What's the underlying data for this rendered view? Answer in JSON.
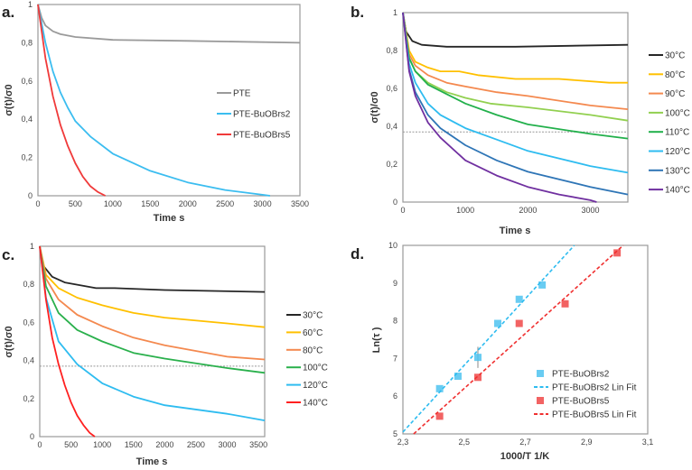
{
  "chart_data": [
    {
      "panel": "a.",
      "type": "line",
      "xlabel": "Time s",
      "ylabel": "σ(t)/σ0",
      "xlim": [
        0,
        3500
      ],
      "ylim": [
        0,
        1
      ],
      "xticks": [
        0,
        500,
        1000,
        1500,
        2000,
        2500,
        3000,
        3500
      ],
      "xtick_labels": [
        "0",
        "500",
        "1000",
        "1500",
        "2000",
        "2500",
        "3000",
        "3500"
      ],
      "yticks": [
        0,
        0.2,
        0.4,
        0.6,
        0.8,
        1
      ],
      "ytick_labels": [
        "0",
        "0,2",
        "0,4",
        "0,6",
        "0,8",
        "1"
      ],
      "legend_position": "center-right inside",
      "series": [
        {
          "name": "PTE",
          "color": "#9a9a9a",
          "points": [
            [
              0,
              1
            ],
            [
              50,
              0.93
            ],
            [
              100,
              0.89
            ],
            [
              200,
              0.86
            ],
            [
              300,
              0.845
            ],
            [
              500,
              0.83
            ],
            [
              1000,
              0.815
            ],
            [
              2000,
              0.81
            ],
            [
              3500,
              0.8
            ]
          ]
        },
        {
          "name": "PTE-BuOBrs2",
          "color": "#3bbdf0",
          "points": [
            [
              0,
              1
            ],
            [
              100,
              0.8
            ],
            [
              200,
              0.65
            ],
            [
              300,
              0.54
            ],
            [
              400,
              0.46
            ],
            [
              500,
              0.39
            ],
            [
              700,
              0.31
            ],
            [
              1000,
              0.22
            ],
            [
              1500,
              0.13
            ],
            [
              2000,
              0.07
            ],
            [
              2500,
              0.03
            ],
            [
              3000,
              0.005
            ],
            [
              3100,
              0
            ]
          ]
        },
        {
          "name": "PTE-BuOBrs5",
          "color": "#f03a3a",
          "points": [
            [
              0,
              1
            ],
            [
              100,
              0.72
            ],
            [
              200,
              0.52
            ],
            [
              300,
              0.37
            ],
            [
              400,
              0.26
            ],
            [
              500,
              0.17
            ],
            [
              600,
              0.1
            ],
            [
              700,
              0.05
            ],
            [
              800,
              0.02
            ],
            [
              900,
              0
            ]
          ]
        }
      ]
    },
    {
      "panel": "b.",
      "type": "line",
      "xlabel": "Time s",
      "ylabel": "σ(t)/σ0",
      "xlim": [
        0,
        3600
      ],
      "ylim": [
        0,
        1
      ],
      "xticks": [
        0,
        1000,
        2000,
        3000
      ],
      "xtick_labels": [
        "0",
        "1000",
        "2000",
        "3000"
      ],
      "yticks": [
        0,
        0.2,
        0.4,
        0.6,
        0.8,
        1
      ],
      "ytick_labels": [
        "0",
        "0,2",
        "0,4",
        "0,6",
        "0,8",
        "1"
      ],
      "reference_line_y": 0.37,
      "legend_position": "right outside",
      "series": [
        {
          "name": "30°C",
          "color": "#262626",
          "points": [
            [
              0,
              1
            ],
            [
              50,
              0.9
            ],
            [
              150,
              0.85
            ],
            [
              300,
              0.83
            ],
            [
              700,
              0.82
            ],
            [
              1800,
              0.82
            ],
            [
              3600,
              0.83
            ]
          ]
        },
        {
          "name": "80°C",
          "color": "#ffc000",
          "points": [
            [
              0,
              1
            ],
            [
              100,
              0.8
            ],
            [
              200,
              0.74
            ],
            [
              400,
              0.71
            ],
            [
              600,
              0.69
            ],
            [
              900,
              0.69
            ],
            [
              1200,
              0.67
            ],
            [
              1800,
              0.65
            ],
            [
              2500,
              0.65
            ],
            [
              3300,
              0.63
            ],
            [
              3600,
              0.63
            ]
          ]
        },
        {
          "name": "90°C",
          "color": "#f4894f",
          "points": [
            [
              0,
              1
            ],
            [
              100,
              0.78
            ],
            [
              200,
              0.72
            ],
            [
              400,
              0.67
            ],
            [
              700,
              0.63
            ],
            [
              1000,
              0.61
            ],
            [
              1500,
              0.58
            ],
            [
              2000,
              0.56
            ],
            [
              3000,
              0.51
            ],
            [
              3600,
              0.49
            ]
          ]
        },
        {
          "name": "100°C",
          "color": "#92d050",
          "points": [
            [
              0,
              1
            ],
            [
              100,
              0.76
            ],
            [
              200,
              0.69
            ],
            [
              400,
              0.63
            ],
            [
              700,
              0.58
            ],
            [
              1000,
              0.55
            ],
            [
              1400,
              0.52
            ],
            [
              2000,
              0.5
            ],
            [
              3000,
              0.46
            ],
            [
              3600,
              0.43
            ]
          ]
        },
        {
          "name": "110°C",
          "color": "#22b04b",
          "points": [
            [
              0,
              1
            ],
            [
              100,
              0.76
            ],
            [
              200,
              0.69
            ],
            [
              400,
              0.62
            ],
            [
              700,
              0.57
            ],
            [
              1000,
              0.52
            ],
            [
              1500,
              0.46
            ],
            [
              2000,
              0.41
            ],
            [
              3000,
              0.36
            ],
            [
              3600,
              0.335
            ]
          ]
        },
        {
          "name": "120°C",
          "color": "#2ebcf0",
          "points": [
            [
              0,
              1
            ],
            [
              100,
              0.73
            ],
            [
              200,
              0.63
            ],
            [
              400,
              0.52
            ],
            [
              600,
              0.46
            ],
            [
              1000,
              0.39
            ],
            [
              1500,
              0.33
            ],
            [
              2000,
              0.27
            ],
            [
              3000,
              0.19
            ],
            [
              3600,
              0.155
            ]
          ]
        },
        {
          "name": "130°C",
          "color": "#2e75b6",
          "points": [
            [
              0,
              1
            ],
            [
              100,
              0.7
            ],
            [
              200,
              0.58
            ],
            [
              400,
              0.46
            ],
            [
              600,
              0.39
            ],
            [
              1000,
              0.3
            ],
            [
              1500,
              0.22
            ],
            [
              2000,
              0.16
            ],
            [
              3000,
              0.08
            ],
            [
              3600,
              0.04
            ]
          ]
        },
        {
          "name": "140°C",
          "color": "#7030a0",
          "points": [
            [
              0,
              1
            ],
            [
              100,
              0.69
            ],
            [
              200,
              0.56
            ],
            [
              400,
              0.42
            ],
            [
              600,
              0.34
            ],
            [
              1000,
              0.22
            ],
            [
              1500,
              0.14
            ],
            [
              2000,
              0.08
            ],
            [
              2500,
              0.04
            ],
            [
              3000,
              0.01
            ],
            [
              3100,
              0
            ]
          ]
        }
      ]
    },
    {
      "panel": "c.",
      "type": "line",
      "xlabel": "Time s",
      "ylabel": "σ(t)/σ0",
      "xlim": [
        0,
        3600
      ],
      "ylim": [
        0,
        1
      ],
      "xticks": [
        0,
        500,
        1000,
        1500,
        2000,
        2500,
        3000,
        3500
      ],
      "xtick_labels": [
        "0",
        "500",
        "1000",
        "1500",
        "2000",
        "2500",
        "3000",
        "3500"
      ],
      "yticks": [
        0,
        0.2,
        0.4,
        0.6,
        0.8,
        1
      ],
      "ytick_labels": [
        "0",
        "0,2",
        "0,4",
        "0,6",
        "0,8",
        "1"
      ],
      "reference_line_y": 0.37,
      "legend_position": "right outside",
      "series": [
        {
          "name": "30°C",
          "color": "#262626",
          "points": [
            [
              0,
              1
            ],
            [
              50,
              0.9
            ],
            [
              200,
              0.84
            ],
            [
              400,
              0.81
            ],
            [
              900,
              0.78
            ],
            [
              1200,
              0.78
            ],
            [
              2000,
              0.77
            ],
            [
              3600,
              0.76
            ]
          ]
        },
        {
          "name": "60°C",
          "color": "#ffc000",
          "points": [
            [
              0,
              1
            ],
            [
              100,
              0.85
            ],
            [
              300,
              0.78
            ],
            [
              600,
              0.73
            ],
            [
              1000,
              0.69
            ],
            [
              1500,
              0.65
            ],
            [
              2000,
              0.625
            ],
            [
              3000,
              0.595
            ],
            [
              3600,
              0.575
            ]
          ]
        },
        {
          "name": "80°C",
          "color": "#f4894f",
          "points": [
            [
              0,
              1
            ],
            [
              100,
              0.83
            ],
            [
              300,
              0.72
            ],
            [
              600,
              0.64
            ],
            [
              1000,
              0.58
            ],
            [
              1500,
              0.52
            ],
            [
              2000,
              0.48
            ],
            [
              3000,
              0.42
            ],
            [
              3600,
              0.405
            ]
          ]
        },
        {
          "name": "100°C",
          "color": "#2ab04c",
          "points": [
            [
              0,
              1
            ],
            [
              100,
              0.79
            ],
            [
              300,
              0.65
            ],
            [
              600,
              0.56
            ],
            [
              1000,
              0.5
            ],
            [
              1500,
              0.44
            ],
            [
              2000,
              0.41
            ],
            [
              3000,
              0.36
            ],
            [
              3600,
              0.335
            ]
          ]
        },
        {
          "name": "120°C",
          "color": "#2ebcf0",
          "points": [
            [
              0,
              1
            ],
            [
              100,
              0.73
            ],
            [
              300,
              0.5
            ],
            [
              600,
              0.38
            ],
            [
              1000,
              0.28
            ],
            [
              1500,
              0.21
            ],
            [
              2000,
              0.165
            ],
            [
              3000,
              0.12
            ],
            [
              3600,
              0.085
            ]
          ]
        },
        {
          "name": "140°C",
          "color": "#ff2020",
          "points": [
            [
              0,
              1
            ],
            [
              100,
              0.72
            ],
            [
              200,
              0.52
            ],
            [
              300,
              0.38
            ],
            [
              400,
              0.27
            ],
            [
              500,
              0.18
            ],
            [
              600,
              0.11
            ],
            [
              700,
              0.06
            ],
            [
              800,
              0.02
            ],
            [
              880,
              0
            ]
          ]
        }
      ]
    },
    {
      "panel": "d.",
      "type": "scatter",
      "xlabel": "1000/T   1/K",
      "ylabel": "Ln(τ )",
      "xlim": [
        2.3,
        3.1
      ],
      "ylim": [
        5,
        10
      ],
      "xticks": [
        2.3,
        2.5,
        2.7,
        2.9,
        3.1
      ],
      "xtick_labels": [
        "2,3",
        "2,5",
        "2,7",
        "2,9",
        "3,1"
      ],
      "yticks": [
        5,
        6,
        7,
        8,
        9,
        10
      ],
      "ytick_labels": [
        "5",
        "6",
        "7",
        "8",
        "9",
        "10"
      ],
      "legend_position": "bottom-right inside",
      "series": [
        {
          "name": "PTE-BuOBrs2",
          "kind": "markers",
          "color": "#4fc3f0",
          "points": [
            [
              2.42,
              6.2
            ],
            [
              2.48,
              6.53
            ],
            [
              2.545,
              7.03
            ],
            [
              2.61,
              7.93
            ],
            [
              2.68,
              8.57
            ],
            [
              2.755,
              8.95
            ]
          ],
          "error_bars": [
            [
              2.545,
              0.28
            ]
          ]
        },
        {
          "name": "PTE-BuOBrs2 Lin Fit",
          "kind": "dashed",
          "color": "#2ebcf0",
          "points": [
            [
              2.3,
              5.05
            ],
            [
              2.86,
              10
            ]
          ]
        },
        {
          "name": "PTE-BuOBrs5",
          "kind": "markers",
          "color": "#f04848",
          "points": [
            [
              2.42,
              5.47
            ],
            [
              2.545,
              6.5
            ],
            [
              2.68,
              7.93
            ],
            [
              2.83,
              8.45
            ],
            [
              3.0,
              9.8
            ]
          ]
        },
        {
          "name": "PTE-BuOBrs5 Lin Fit",
          "kind": "dashed",
          "color": "#f03030",
          "points": [
            [
              2.335,
              5
            ],
            [
              3.02,
              10
            ]
          ]
        }
      ]
    }
  ]
}
